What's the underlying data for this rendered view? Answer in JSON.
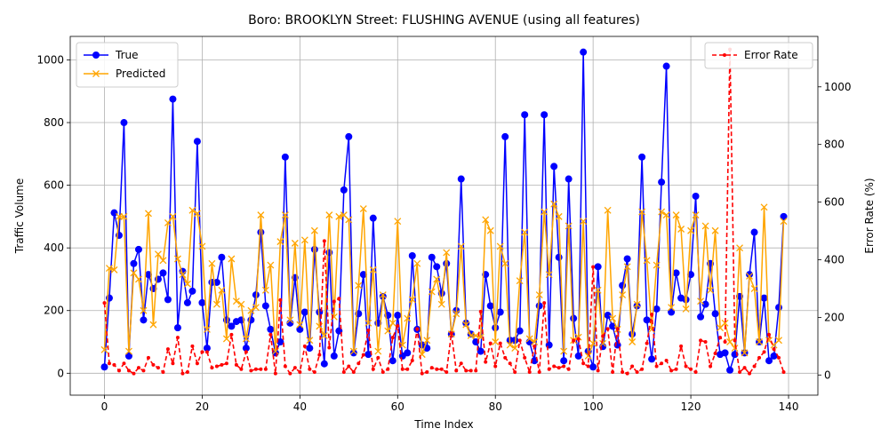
{
  "chart_data": {
    "type": "line",
    "title": "Boro: BROOKLYN Street: FLUSHING AVENUE (using all features)",
    "xlabel": "Time Index",
    "ylabel": "Traffic Volume",
    "y2label": "Error Rate (%)",
    "xlim": [
      -7,
      146
    ],
    "ylim": [
      -70,
      1075
    ],
    "y2lim": [
      -70,
      1175
    ],
    "xticks": [
      0,
      20,
      40,
      60,
      80,
      100,
      120,
      140
    ],
    "yticks": [
      0,
      200,
      400,
      600,
      800,
      1000
    ],
    "y2ticks": [
      0,
      200,
      400,
      600,
      800,
      1000
    ],
    "grid": true,
    "legend_left": "upper-left",
    "legend_right": "upper-right",
    "x": [
      0,
      1,
      2,
      3,
      4,
      5,
      6,
      7,
      8,
      9,
      10,
      11,
      12,
      13,
      14,
      15,
      16,
      17,
      18,
      19,
      20,
      21,
      22,
      23,
      24,
      25,
      26,
      27,
      28,
      29,
      30,
      31,
      32,
      33,
      34,
      35,
      36,
      37,
      38,
      39,
      40,
      41,
      42,
      43,
      44,
      45,
      46,
      47,
      48,
      49,
      50,
      51,
      52,
      53,
      54,
      55,
      56,
      57,
      58,
      59,
      60,
      61,
      62,
      63,
      64,
      65,
      66,
      67,
      68,
      69,
      70,
      71,
      72,
      73,
      74,
      75,
      76,
      77,
      78,
      79,
      80,
      81,
      82,
      83,
      84,
      85,
      86,
      87,
      88,
      89,
      90,
      91,
      92,
      93,
      94,
      95,
      96,
      97,
      98,
      99,
      100,
      101,
      102,
      103,
      104,
      105,
      106,
      107,
      108,
      109,
      110,
      111,
      112,
      113,
      114,
      115,
      116,
      117,
      118,
      119,
      120,
      121,
      122,
      123,
      124,
      125,
      126,
      127,
      128,
      129,
      130,
      131,
      132,
      133,
      134,
      135,
      136,
      137,
      138,
      139
    ],
    "series": [
      {
        "name": "True",
        "color": "#0000ff",
        "axis": "left",
        "marker": "circle",
        "values": [
          20,
          240,
          512,
          440,
          800,
          55,
          350,
          395,
          170,
          315,
          270,
          300,
          320,
          235,
          875,
          145,
          325,
          225,
          262,
          740,
          225,
          80,
          290,
          290,
          370,
          170,
          150,
          165,
          170,
          80,
          170,
          250,
          450,
          215,
          140,
          65,
          100,
          690,
          160,
          305,
          140,
          195,
          80,
          395,
          195,
          30,
          385,
          55,
          135,
          585,
          755,
          65,
          190,
          315,
          60,
          495,
          160,
          245,
          185,
          40,
          185,
          55,
          65,
          375,
          140,
          90,
          80,
          370,
          340,
          255,
          350,
          125,
          200,
          620,
          160,
          125,
          100,
          70,
          315,
          215,
          145,
          195,
          755,
          105,
          105,
          135,
          825,
          100,
          40,
          215,
          825,
          90,
          660,
          370,
          40,
          620,
          175,
          55,
          1025,
          70,
          20,
          340,
          85,
          185,
          150,
          90,
          280,
          365,
          125,
          215,
          690,
          170,
          45,
          205,
          610,
          980,
          195,
          320,
          240,
          235,
          315,
          565,
          180,
          220,
          350,
          190,
          60,
          65,
          10,
          60,
          245,
          65,
          315,
          450,
          100,
          240,
          40,
          55,
          210,
          500
        ]
      },
      {
        "name": "Predicted",
        "color": "#ffa500",
        "axis": "left",
        "marker": "x",
        "values": [
          75,
          335,
          330,
          500,
          500,
          70,
          320,
          300,
          200,
          510,
          155,
          380,
          360,
          480,
          500,
          365,
          315,
          285,
          520,
          510,
          405,
          140,
          350,
          220,
          265,
          110,
          365,
          230,
          220,
          110,
          200,
          210,
          505,
          265,
          345,
          70,
          420,
          505,
          170,
          415,
          155,
          425,
          105,
          455,
          150,
          120,
          505,
          180,
          500,
          505,
          490,
          70,
          280,
          525,
          160,
          330,
          70,
          250,
          135,
          160,
          485,
          90,
          175,
          235,
          350,
          60,
          105,
          260,
          300,
          220,
          385,
          125,
          190,
          405,
          155,
          120,
          120,
          115,
          490,
          455,
          100,
          405,
          350,
          90,
          80,
          295,
          450,
          110,
          100,
          250,
          515,
          315,
          540,
          500,
          70,
          470,
          105,
          115,
          485,
          55,
          95,
          265,
          95,
          520,
          175,
          140,
          250,
          340,
          100,
          220,
          515,
          360,
          140,
          345,
          515,
          505,
          210,
          505,
          460,
          205,
          455,
          505,
          230,
          470,
          265,
          455,
          145,
          160,
          100,
          80,
          400,
          65,
          310,
          270,
          100,
          530,
          105,
          90,
          105,
          485
        ]
      },
      {
        "name": "Error Rate",
        "color": "#ff0000",
        "axis": "right",
        "marker": "point",
        "values": [
          250,
          40,
          35,
          15,
          40,
          15,
          5,
          25,
          15,
          60,
          35,
          25,
          10,
          90,
          40,
          130,
          5,
          10,
          100,
          40,
          80,
          80,
          25,
          30,
          35,
          40,
          140,
          35,
          20,
          80,
          15,
          20,
          20,
          20,
          140,
          5,
          260,
          30,
          5,
          25,
          10,
          100,
          20,
          10,
          70,
          465,
          95,
          255,
          265,
          10,
          30,
          10,
          40,
          70,
          155,
          20,
          60,
          10,
          20,
          130,
          170,
          20,
          20,
          50,
          160,
          5,
          10,
          25,
          20,
          20,
          10,
          145,
          15,
          40,
          15,
          15,
          15,
          220,
          45,
          110,
          30,
          110,
          60,
          40,
          10,
          120,
          60,
          10,
          100,
          10,
          250,
          20,
          30,
          25,
          30,
          20,
          120,
          125,
          40,
          30,
          375,
          15,
          135,
          160,
          10,
          160,
          10,
          5,
          30,
          10,
          20,
          110,
          210,
          30,
          40,
          50,
          15,
          20,
          100,
          30,
          20,
          10,
          120,
          115,
          30,
          75,
          130,
          115,
          1130,
          120,
          10,
          25,
          5,
          30,
          60,
          80,
          140,
          90,
          60,
          10
        ]
      }
    ]
  }
}
